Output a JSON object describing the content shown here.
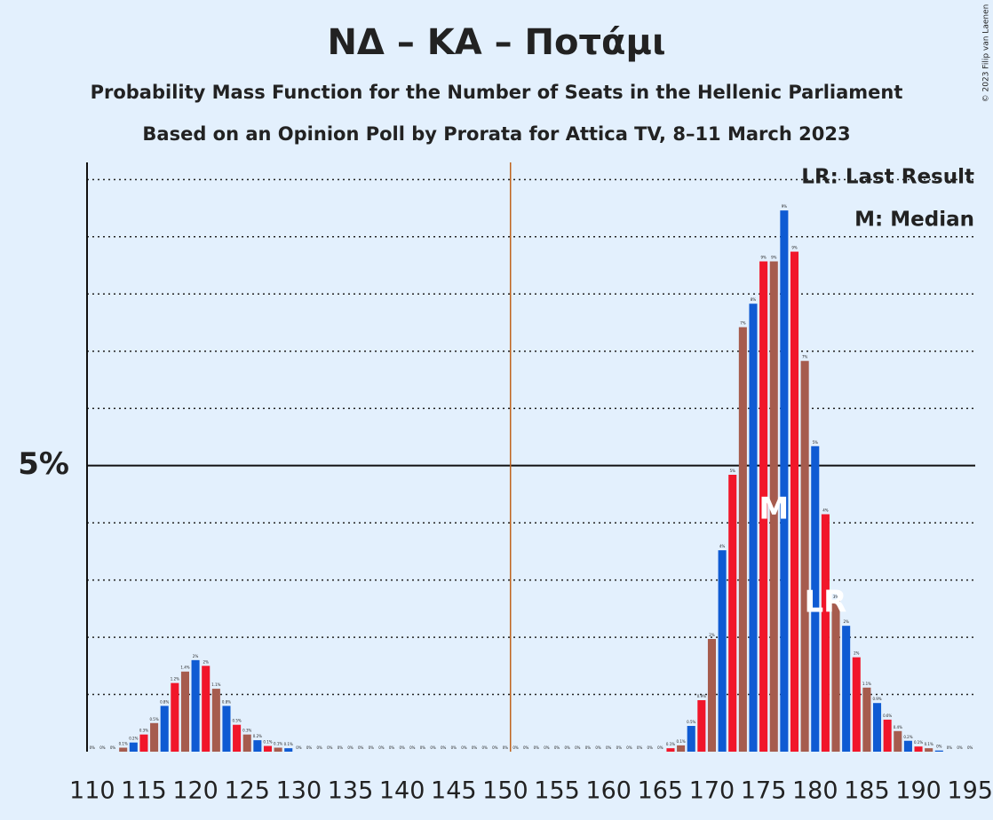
{
  "chart_data": {
    "type": "bar",
    "title": "ΝΔ – ΚΑ – Ποτάμι",
    "subtitle": "Probability Mass Function for the Number of Seats in the Hellenic Parliament",
    "subtitle2": "Based on an Opinion Poll by Prorata for Attica TV, 8–11 March 2023",
    "copyright": "© 2023 Filip van Laenen",
    "legend_items": [
      "LR: Last Result",
      "M: Median"
    ],
    "bar_colors": [
      "#a65c4e",
      "#0f5bd3",
      "#f1162a"
    ],
    "x": [
      110,
      111,
      112,
      113,
      114,
      115,
      116,
      117,
      118,
      119,
      120,
      121,
      122,
      123,
      124,
      125,
      126,
      127,
      128,
      129,
      130,
      131,
      132,
      133,
      134,
      135,
      136,
      137,
      138,
      139,
      140,
      141,
      142,
      143,
      144,
      145,
      146,
      147,
      148,
      149,
      150,
      151,
      152,
      153,
      154,
      155,
      156,
      157,
      158,
      159,
      160,
      161,
      162,
      163,
      164,
      165,
      166,
      167,
      168,
      169,
      170,
      171,
      172,
      173,
      174,
      175,
      176,
      177,
      178,
      179,
      180,
      181,
      182,
      183,
      184,
      185,
      186,
      187,
      188,
      189,
      190,
      191,
      192,
      193,
      194,
      195
    ],
    "values": [
      0,
      0,
      0,
      0.07,
      0.16,
      0.3,
      0.5,
      0.8,
      1.2,
      1.4,
      1.6,
      1.5,
      1.1,
      0.8,
      0.47,
      0.3,
      0.2,
      0.1,
      0.07,
      0.06,
      0,
      0,
      0,
      0,
      0,
      0,
      0,
      0,
      0,
      0,
      0,
      0,
      0,
      0,
      0,
      0,
      0,
      0,
      0,
      0,
      0,
      0,
      0,
      0,
      0,
      0,
      0,
      0,
      0,
      0,
      0,
      0,
      0,
      0,
      0,
      0,
      0.06,
      0.11,
      0.45,
      0.9,
      1.97,
      3.52,
      4.84,
      7.42,
      7.83,
      8.57,
      8.57,
      9.46,
      8.74,
      6.83,
      5.34,
      4.15,
      2.64,
      2.2,
      1.65,
      1.12,
      0.85,
      0.56,
      0.36,
      0.19,
      0.09,
      0.06,
      0.02,
      0,
      0,
      0
    ],
    "value_labels": [
      "0%",
      "0%",
      "0%",
      "0.1%",
      "0.2%",
      "0.3%",
      "0.5%",
      "0.8%",
      "1.2%",
      "1.4%",
      "2%",
      "2%",
      "1.1%",
      "0.8%",
      "0.5%",
      "0.3%",
      "0.2%",
      "0.1%",
      "0.1%",
      "0.1%",
      "0%",
      "0%",
      "0%",
      "0%",
      "0%",
      "0%",
      "0%",
      "0%",
      "0%",
      "0%",
      "0%",
      "0%",
      "0%",
      "0%",
      "0%",
      "0%",
      "0%",
      "0%",
      "0%",
      "0%",
      "0%",
      "0%",
      "0%",
      "0%",
      "0%",
      "0%",
      "0%",
      "0%",
      "0%",
      "0%",
      "0%",
      "0%",
      "0%",
      "0%",
      "0%",
      "0%",
      "0.1%",
      "0.1%",
      "0.5%",
      "0.9%",
      "2%",
      "4%",
      "5%",
      "7%",
      "8%",
      "9%",
      "9%",
      "9%",
      "9%",
      "7%",
      "5%",
      "4%",
      "3%",
      "2%",
      "2%",
      "1.1%",
      "0.9%",
      "0.6%",
      "0.4%",
      "0.2%",
      "0.1%",
      "0.1%",
      "0%",
      "0%",
      "0%",
      "0%"
    ],
    "xlim": [
      109.5,
      195.5
    ],
    "xticks": [
      110,
      115,
      120,
      125,
      130,
      135,
      140,
      145,
      150,
      155,
      160,
      165,
      170,
      175,
      180,
      185,
      190,
      195
    ],
    "ylim": [
      0,
      10.3
    ],
    "yticks": [
      {
        "value": 5,
        "label": "5%"
      }
    ],
    "minor_grid": [
      1,
      2,
      3,
      4,
      6,
      7,
      8,
      9,
      10
    ],
    "majority_line": 150.5,
    "annotations": [
      {
        "text": "M",
        "x": 176
      },
      {
        "text": "LR",
        "x": 181
      }
    ]
  }
}
